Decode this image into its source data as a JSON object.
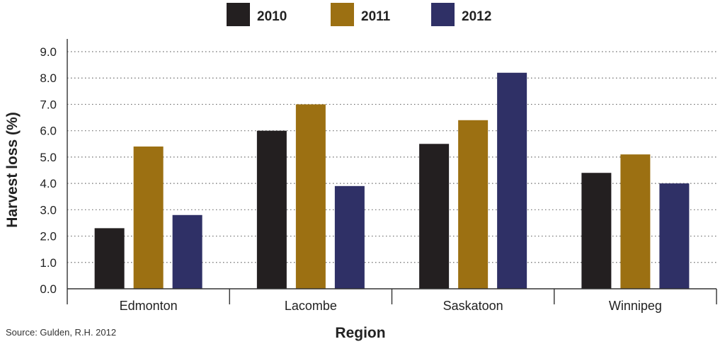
{
  "chart_data": {
    "type": "bar",
    "categories": [
      "Edmonton",
      "Lacombe",
      "Saskatoon",
      "Winnipeg"
    ],
    "series": [
      {
        "name": "2010",
        "color": "#231f20",
        "values": [
          2.3,
          6.0,
          5.5,
          4.4
        ]
      },
      {
        "name": "2011",
        "color": "#9c7012",
        "values": [
          5.4,
          7.0,
          6.4,
          5.1
        ]
      },
      {
        "name": "2012",
        "color": "#2f3066",
        "values": [
          2.8,
          3.9,
          8.2,
          4.0
        ]
      }
    ],
    "xlabel": "Region",
    "ylabel": "Harvest loss (%)",
    "ylim": [
      0,
      9.0
    ],
    "yticks": [
      "0.0",
      "1.0",
      "2.0",
      "3.0",
      "4.0",
      "5.0",
      "6.0",
      "7.0",
      "8.0",
      "9.0"
    ],
    "grid": true,
    "legend_position": "top-center",
    "source": "Source: Gulden, R.H. 2012"
  }
}
